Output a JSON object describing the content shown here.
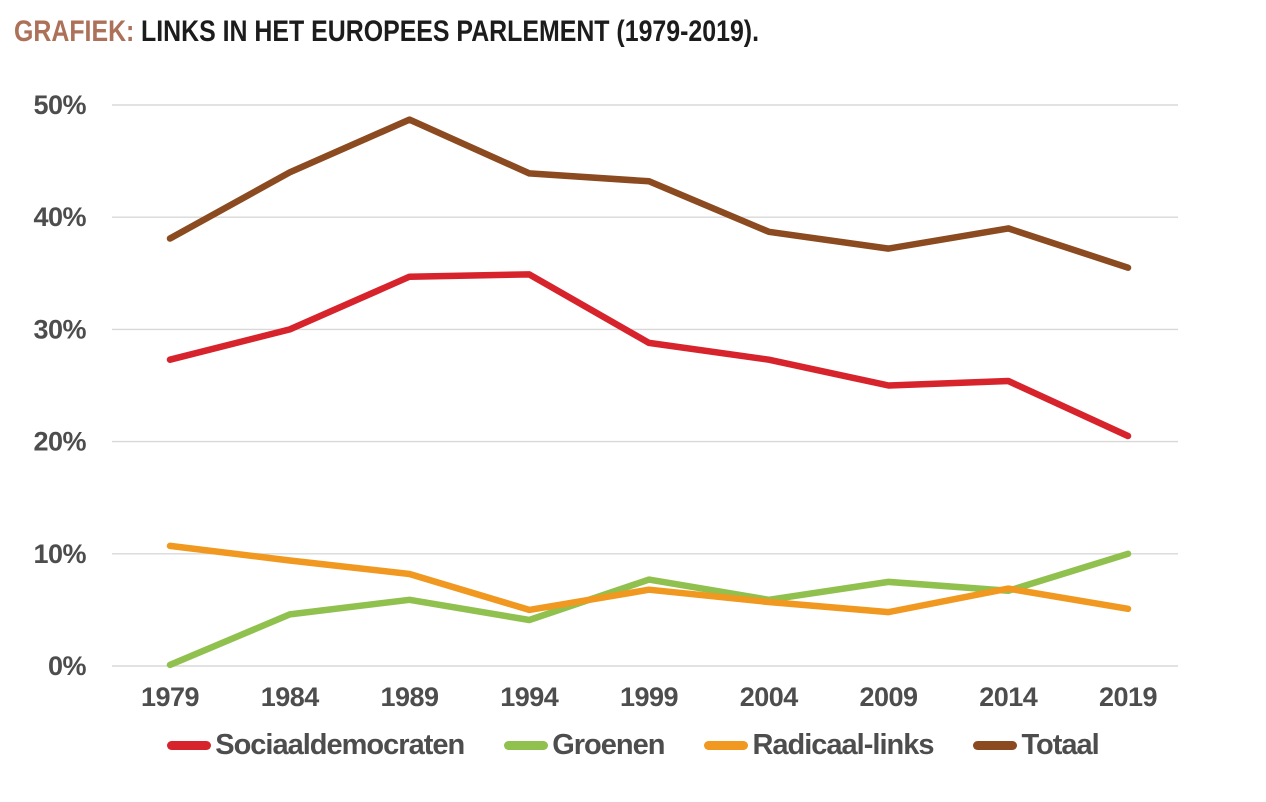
{
  "title": {
    "prefix": "GRAFIEK:",
    "text": "LINKS IN HET EUROPEES PARLEMENT (1979-2019)."
  },
  "colors": {
    "title_prefix": "#AC7158",
    "title_text": "#1c1c1c",
    "grid": "#d8d8d8",
    "tick_text": "#4d4d4d",
    "legend_text": "#4d4d4d"
  },
  "chart_data": {
    "type": "line",
    "title": "GRAFIEK: LINKS IN HET EUROPEES PARLEMENT (1979-2019).",
    "xlabel": "",
    "ylabel": "",
    "categories": [
      "1979",
      "1984",
      "1989",
      "1994",
      "1999",
      "2004",
      "2009",
      "2014",
      "2019"
    ],
    "series": [
      {
        "name": "Sociaaldemocraten",
        "color": "#D7232B",
        "values": [
          27.3,
          30.0,
          34.7,
          34.9,
          28.8,
          27.3,
          25.0,
          25.4,
          20.5
        ]
      },
      {
        "name": "Groenen",
        "color": "#90C14F",
        "values": [
          0.1,
          4.6,
          5.9,
          4.1,
          7.7,
          5.9,
          7.5,
          6.7,
          10.0
        ]
      },
      {
        "name": "Radicaal-links",
        "color": "#F0981F",
        "values": [
          10.7,
          9.4,
          8.2,
          5.0,
          6.8,
          5.7,
          4.8,
          6.9,
          5.1
        ]
      },
      {
        "name": "Totaal",
        "color": "#8B4A1F",
        "values": [
          38.1,
          44.0,
          48.7,
          43.9,
          43.2,
          38.7,
          37.2,
          39.0,
          35.5
        ]
      }
    ],
    "yticks": [
      "0%",
      "10%",
      "20%",
      "30%",
      "40%",
      "50%"
    ],
    "ytick_values": [
      0,
      10,
      20,
      30,
      40,
      50
    ],
    "ylim": [
      0,
      50
    ],
    "grid": "horizontal",
    "legend_position": "bottom"
  }
}
